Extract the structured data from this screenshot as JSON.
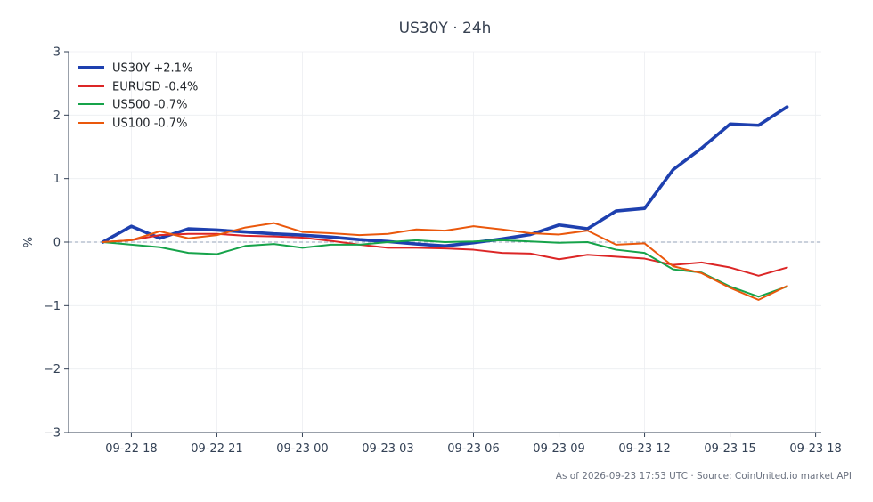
{
  "footer": "As of 2026-09-23 17:53 UTC · Source: CoinUnited.io market API",
  "chart_data": {
    "type": "line",
    "title": "US30Y · 24h",
    "ylabel": "%",
    "x": [
      "09-22 17",
      "09-22 18",
      "09-22 19",
      "09-22 20",
      "09-22 21",
      "09-22 22",
      "09-22 23",
      "09-23 00",
      "09-23 01",
      "09-23 02",
      "09-23 03",
      "09-23 04",
      "09-23 05",
      "09-23 06",
      "09-23 07",
      "09-23 08",
      "09-23 09",
      "09-23 10",
      "09-23 11",
      "09-23 12",
      "09-23 13",
      "09-23 14",
      "09-23 15",
      "09-23 16",
      "09-23 17"
    ],
    "xlim": [
      "09-22 15:48",
      "09-23 18:12"
    ],
    "xticks": [
      "09-22 18",
      "09-22 21",
      "09-23 00",
      "09-23 03",
      "09-23 06",
      "09-23 09",
      "09-23 12",
      "09-23 15",
      "09-23 18"
    ],
    "ylim": [
      -3,
      3
    ],
    "yticks": [
      3,
      2,
      1,
      0,
      -1,
      -2,
      -3
    ],
    "ytick_labels": [
      "3",
      "2",
      "1",
      "0",
      "−1",
      "−2",
      "−3"
    ],
    "grid": true,
    "reference_lines": [
      0
    ],
    "legend_position": "top-left",
    "series": [
      {
        "name": "US30Y +2.1%",
        "color": "#1e40af",
        "values": [
          0.0,
          0.25,
          0.06,
          0.21,
          0.19,
          0.16,
          0.13,
          0.11,
          0.08,
          0.04,
          0.01,
          -0.03,
          -0.06,
          -0.01,
          0.05,
          0.12,
          0.27,
          0.21,
          0.49,
          0.53,
          1.14,
          1.48,
          1.86,
          1.84,
          2.13
        ]
      },
      {
        "name": "EURUSD -0.4%",
        "color": "#dc2626",
        "values": [
          0.0,
          0.03,
          0.11,
          0.13,
          0.13,
          0.1,
          0.09,
          0.07,
          0.02,
          -0.04,
          -0.09,
          -0.09,
          -0.1,
          -0.12,
          -0.17,
          -0.18,
          -0.27,
          -0.2,
          -0.23,
          -0.26,
          -0.36,
          -0.32,
          -0.4,
          -0.53,
          -0.4
        ]
      },
      {
        "name": "US500 -0.7%",
        "color": "#16a34a",
        "values": [
          0.0,
          -0.04,
          -0.08,
          -0.17,
          -0.19,
          -0.06,
          -0.03,
          -0.09,
          -0.04,
          -0.04,
          0.0,
          0.03,
          0.0,
          0.01,
          0.03,
          0.01,
          -0.01,
          0.0,
          -0.12,
          -0.17,
          -0.43,
          -0.48,
          -0.7,
          -0.86,
          -0.7
        ]
      },
      {
        "name": "US100 -0.7%",
        "color": "#ea580c",
        "values": [
          0.0,
          0.03,
          0.17,
          0.06,
          0.11,
          0.23,
          0.3,
          0.16,
          0.14,
          0.11,
          0.13,
          0.2,
          0.18,
          0.25,
          0.2,
          0.14,
          0.12,
          0.18,
          -0.04,
          -0.02,
          -0.38,
          -0.49,
          -0.72,
          -0.91,
          -0.69
        ]
      }
    ]
  }
}
